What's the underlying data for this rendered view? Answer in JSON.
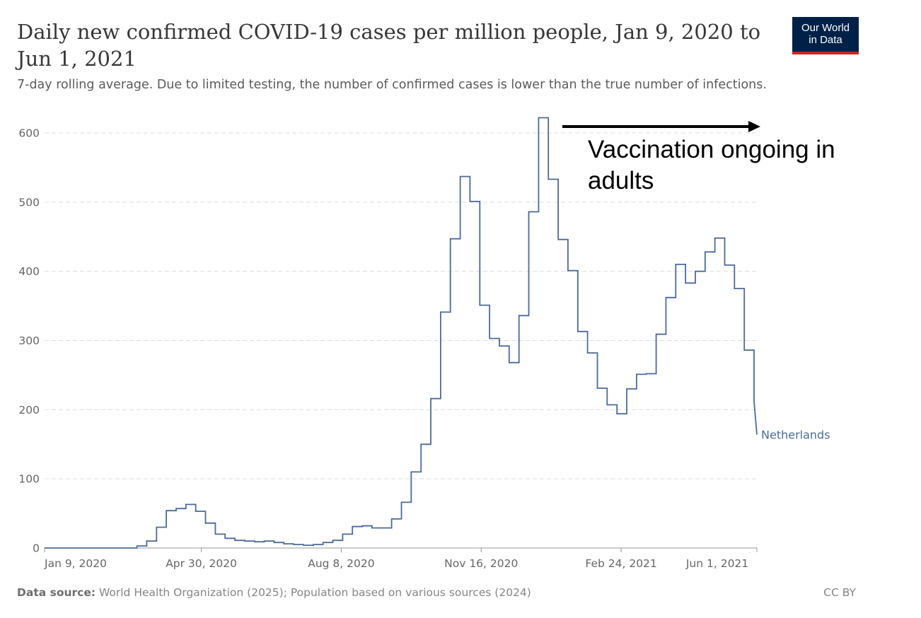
{
  "header": {
    "title": "Daily new confirmed COVID-19 cases per million people, Jan 9, 2020 to Jun 1, 2021",
    "subtitle": "7-day rolling average. Due to limited testing, the number of confirmed cases is lower than the true number of infections.",
    "logo_line1": "Our World",
    "logo_line2": "in Data"
  },
  "footer": {
    "source_label": "Data source:",
    "source_text": " World Health Organization (2025); Population based on various sources (2024)",
    "license": "CC BY"
  },
  "colors": {
    "series": "#4c6a9c",
    "grid": "#dddddd",
    "axis": "#999999"
  },
  "chart_data": {
    "type": "line",
    "title": "Daily new confirmed COVID-19 cases per million people, Jan 9, 2020 to Jun 1, 2021",
    "subtitle": "7-day rolling average. Due to limited testing, the number of confirmed cases is lower than the true number of infections.",
    "xlabel": "",
    "ylabel": "",
    "x_range": [
      "2020-01-09",
      "2021-06-01"
    ],
    "ylim": [
      0,
      620
    ],
    "y_ticks": [
      0,
      100,
      200,
      300,
      400,
      500,
      600
    ],
    "x_ticks": [
      {
        "date": "2020-01-09",
        "label": "Jan 9, 2020"
      },
      {
        "date": "2020-04-30",
        "label": "Apr 30, 2020"
      },
      {
        "date": "2020-08-08",
        "label": "Aug 8, 2020"
      },
      {
        "date": "2020-11-16",
        "label": "Nov 16, 2020"
      },
      {
        "date": "2021-02-24",
        "label": "Feb 24, 2021"
      },
      {
        "date": "2021-06-01",
        "label": "Jun 1, 2021"
      }
    ],
    "grid": "horizontal dashed",
    "step": true,
    "series": [
      {
        "name": "Netherlands",
        "points": [
          [
            "2020-01-09",
            0
          ],
          [
            "2020-03-08",
            0
          ],
          [
            "2020-03-15",
            3
          ],
          [
            "2020-03-22",
            10
          ],
          [
            "2020-03-29",
            30
          ],
          [
            "2020-04-05",
            54
          ],
          [
            "2020-04-12",
            57
          ],
          [
            "2020-04-19",
            63
          ],
          [
            "2020-04-26",
            53
          ],
          [
            "2020-05-03",
            36
          ],
          [
            "2020-05-10",
            20
          ],
          [
            "2020-05-17",
            14
          ],
          [
            "2020-05-24",
            11
          ],
          [
            "2020-05-31",
            10
          ],
          [
            "2020-06-07",
            9
          ],
          [
            "2020-06-14",
            10
          ],
          [
            "2020-06-21",
            8
          ],
          [
            "2020-06-28",
            6
          ],
          [
            "2020-07-05",
            5
          ],
          [
            "2020-07-12",
            4
          ],
          [
            "2020-07-19",
            5
          ],
          [
            "2020-07-26",
            8
          ],
          [
            "2020-08-02",
            11
          ],
          [
            "2020-08-09",
            20
          ],
          [
            "2020-08-16",
            31
          ],
          [
            "2020-08-23",
            32
          ],
          [
            "2020-08-30",
            29
          ],
          [
            "2020-09-06",
            29
          ],
          [
            "2020-09-13",
            42
          ],
          [
            "2020-09-20",
            66
          ],
          [
            "2020-09-27",
            110
          ],
          [
            "2020-10-04",
            150
          ],
          [
            "2020-10-11",
            216
          ],
          [
            "2020-10-18",
            341
          ],
          [
            "2020-10-25",
            447
          ],
          [
            "2020-11-01",
            537
          ],
          [
            "2020-11-08",
            501
          ],
          [
            "2020-11-15",
            351
          ],
          [
            "2020-11-22",
            303
          ],
          [
            "2020-11-29",
            292
          ],
          [
            "2020-12-06",
            268
          ],
          [
            "2020-12-13",
            336
          ],
          [
            "2020-12-20",
            486
          ],
          [
            "2020-12-27",
            622
          ],
          [
            "2021-01-03",
            533
          ],
          [
            "2021-01-10",
            446
          ],
          [
            "2021-01-17",
            401
          ],
          [
            "2021-01-24",
            313
          ],
          [
            "2021-01-31",
            282
          ],
          [
            "2021-02-07",
            231
          ],
          [
            "2021-02-14",
            207
          ],
          [
            "2021-02-21",
            194
          ],
          [
            "2021-02-28",
            230
          ],
          [
            "2021-03-07",
            251
          ],
          [
            "2021-03-14",
            252
          ],
          [
            "2021-03-21",
            309
          ],
          [
            "2021-03-28",
            362
          ],
          [
            "2021-04-04",
            410
          ],
          [
            "2021-04-11",
            383
          ],
          [
            "2021-04-18",
            400
          ],
          [
            "2021-04-25",
            428
          ],
          [
            "2021-05-02",
            448
          ],
          [
            "2021-05-09",
            409
          ],
          [
            "2021-05-16",
            375
          ],
          [
            "2021-05-23",
            286
          ],
          [
            "2021-05-30",
            212
          ],
          [
            "2021-06-01",
            164
          ]
        ]
      }
    ],
    "annotation": {
      "text_line1": "Vaccination ongoing in",
      "text_line2": "adults",
      "arrow": "right",
      "arrow_start_date": "2021-01-13"
    }
  }
}
